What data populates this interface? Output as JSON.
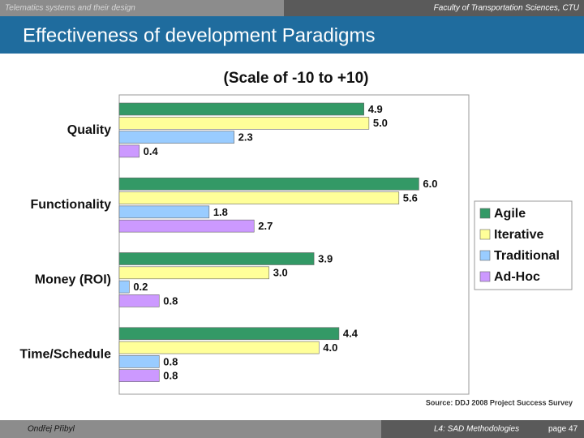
{
  "slide": {
    "header_left": "Telematics systems and their design",
    "header_right": "Faculty of Transportation Sciences, CTU",
    "title": "Effectiveness of development Paradigms",
    "footer_left": "Ondřej Přibyl",
    "footer_center": "L4: SAD Methodologies",
    "footer_right": "page 47"
  },
  "chart_data": {
    "type": "hbar",
    "title": "(Scale of -10 to +10)",
    "source": "Source: DDJ 2008 Project Success Survey",
    "categories": [
      "Quality",
      "Functionality",
      "Money (ROI)",
      "Time/Schedule"
    ],
    "series": [
      {
        "name": "Agile",
        "color": "#339966",
        "values": [
          4.9,
          6.0,
          3.9,
          4.4
        ],
        "value_labels": [
          "4.9",
          "6.0",
          "3.9",
          "4.4"
        ]
      },
      {
        "name": "Iterative",
        "color": "#ffff99",
        "values": [
          5.0,
          5.6,
          3.0,
          4.0
        ],
        "value_labels": [
          "5.0",
          "5.6",
          "3.0",
          "4.0"
        ]
      },
      {
        "name": "Traditional",
        "color": "#99ccff",
        "values": [
          2.3,
          1.8,
          0.2,
          0.8
        ],
        "value_labels": [
          "2.3",
          "1.8",
          "0.2",
          "0.8"
        ]
      },
      {
        "name": "Ad-Hoc",
        "color": "#cc99ff",
        "values": [
          0.4,
          2.7,
          0.8,
          0.8
        ],
        "value_labels": [
          "0.4",
          "2.7",
          "0.8",
          "0.8"
        ]
      }
    ],
    "xlim": [
      0,
      7
    ],
    "legend": "right"
  }
}
